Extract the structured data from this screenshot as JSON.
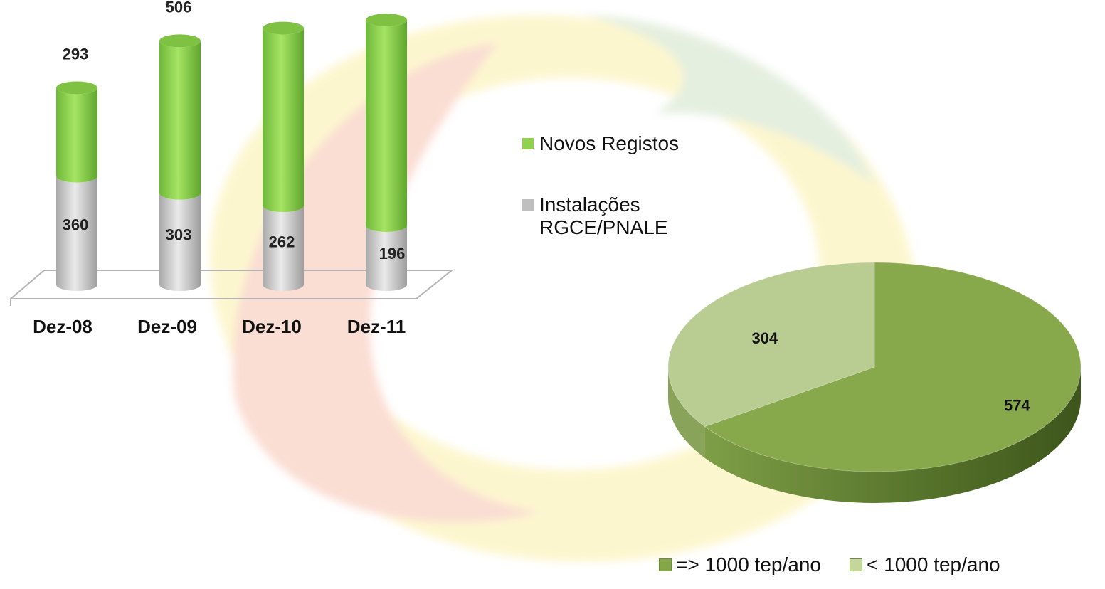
{
  "chart_data": [
    {
      "type": "bar",
      "stacked": true,
      "style": "3d-cylinder",
      "categories": [
        "Dez-08",
        "Dez-09",
        "Dez-10",
        "Dez-11"
      ],
      "series": [
        {
          "name": "Instalações RGCE/PNALE",
          "values": [
            360,
            303,
            262,
            196
          ],
          "color": "#c9c9c9"
        },
        {
          "name": "Novos Registos",
          "values": [
            293,
            506,
            589,
            682
          ],
          "color": "#8fd14f"
        }
      ],
      "legend": "right"
    },
    {
      "type": "pie",
      "style": "3d",
      "labels": [
        "=> 1000 tep/ano",
        "< 1000 tep/ano"
      ],
      "values": [
        574,
        304
      ],
      "colors": [
        "#86a64a",
        "#b7cb8e"
      ],
      "legend": "bottom"
    }
  ],
  "legend_right": [
    {
      "label": "Novos Registos",
      "color": "#92d050"
    },
    {
      "label": "Instalações RGCE/PNALE",
      "color": "#bfbfbf"
    }
  ],
  "legend_bottom": [
    {
      "label": "=> 1000 tep/ano",
      "color": "#86a64a"
    },
    {
      "label": "< 1000 tep/ano",
      "color": "#c4d79b"
    }
  ]
}
